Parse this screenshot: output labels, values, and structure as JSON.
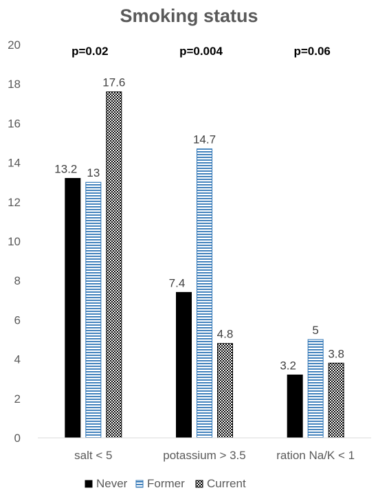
{
  "chart_data": {
    "type": "bar",
    "title": "Smoking status",
    "categories": [
      "salt < 5",
      "potassium > 3.5",
      "ration Na/K < 1"
    ],
    "series": [
      {
        "name": "Never",
        "values": [
          13.2,
          7.4,
          3.2
        ],
        "pattern": "solid",
        "color": "#000000"
      },
      {
        "name": "Former",
        "values": [
          13,
          14.7,
          5
        ],
        "pattern": "horizontal-stripes",
        "color": "#2E75B6"
      },
      {
        "name": "Current",
        "values": [
          17.6,
          4.8,
          3.8
        ],
        "pattern": "checkerboard",
        "color": "#000000"
      }
    ],
    "data_labels": [
      [
        "13.2",
        "7.4",
        "3.2"
      ],
      [
        "13",
        "14.7",
        "5"
      ],
      [
        "17.6",
        "4.8",
        "3.8"
      ]
    ],
    "annotations": [
      "p=0.02",
      "p=0.004",
      "p=0.06"
    ],
    "ylim": [
      0,
      20
    ],
    "yticks": [
      0,
      2,
      4,
      6,
      8,
      10,
      12,
      14,
      16,
      18,
      20
    ],
    "xlabel": "",
    "ylabel": "",
    "grid": false,
    "legend_position": "bottom"
  }
}
